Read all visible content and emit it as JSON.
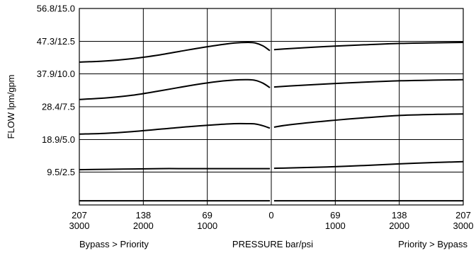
{
  "chart_data": {
    "type": "line",
    "title": "",
    "xlabel": "PRESSURE bar/psi",
    "ylabel": "FLOW lpm/gpm",
    "x_left_label": "Bypass > Priority",
    "x_right_label": "Priority > Bypass",
    "x_ticks": [
      {
        "value": -207,
        "bar": "207",
        "psi": "3000"
      },
      {
        "value": -138,
        "bar": "138",
        "psi": "2000"
      },
      {
        "value": -69,
        "bar": "69",
        "psi": "1000"
      },
      {
        "value": 0,
        "bar": "0",
        "psi": ""
      },
      {
        "value": 69,
        "bar": "69",
        "psi": "1000"
      },
      {
        "value": 138,
        "bar": "138",
        "psi": "2000"
      },
      {
        "value": 207,
        "bar": "207",
        "psi": "3000"
      }
    ],
    "y_ticks": [
      {
        "value": 9.5,
        "label": "9.5/2.5"
      },
      {
        "value": 18.9,
        "label": "18.9/5.0"
      },
      {
        "value": 28.4,
        "label": "28.4/7.5"
      },
      {
        "value": 37.9,
        "label": "37.9/10.0"
      },
      {
        "value": 47.3,
        "label": "47.3/12.5"
      },
      {
        "value": 56.8,
        "label": "56.8/15.0"
      }
    ],
    "xlim": [
      -207,
      207
    ],
    "ylim": [
      0,
      56.8
    ],
    "grid": true,
    "series": [
      {
        "x": [
          -207,
          -180,
          -150,
          -120,
          -90,
          -60,
          -40,
          -25,
          -17,
          -9,
          -1.5,
          3,
          20,
          60,
          100,
          140,
          180,
          207
        ],
        "y": [
          1.2,
          1.2,
          1.2,
          1.2,
          1.2,
          1.2,
          1.2,
          1.2,
          1.2,
          1.2,
          1.2,
          1.2,
          1.2,
          1.2,
          1.2,
          1.2,
          1.2,
          1.2
        ]
      },
      {
        "x": [
          -207,
          -180,
          -150,
          -120,
          -90,
          -60,
          -40,
          -25,
          -17,
          -9,
          -1.5,
          3,
          20,
          60,
          100,
          140,
          180,
          207
        ],
        "y": [
          10.2,
          10.3,
          10.4,
          10.5,
          10.5,
          10.5,
          10.5,
          10.5,
          10.5,
          10.5,
          10.5,
          10.6,
          10.7,
          11.0,
          11.4,
          11.9,
          12.3,
          12.5
        ]
      },
      {
        "x": [
          -207,
          -180,
          -150,
          -120,
          -90,
          -60,
          -40,
          -25,
          -17,
          -9,
          -1.5,
          3,
          20,
          60,
          100,
          140,
          180,
          207
        ],
        "y": [
          20.5,
          20.7,
          21.2,
          21.9,
          22.6,
          23.2,
          23.5,
          23.5,
          23.4,
          22.9,
          22.2,
          22.5,
          23.2,
          24.3,
          25.2,
          25.9,
          26.2,
          26.3
        ]
      },
      {
        "x": [
          -207,
          -180,
          -150,
          -120,
          -90,
          -60,
          -40,
          -25,
          -17,
          -9,
          -1.5,
          3,
          20,
          60,
          100,
          140,
          180,
          207
        ],
        "y": [
          30.5,
          30.9,
          31.7,
          33.0,
          34.4,
          35.6,
          36.1,
          36.2,
          36.0,
          35.2,
          33.9,
          34.1,
          34.4,
          35.0,
          35.5,
          35.9,
          36.1,
          36.2
        ]
      },
      {
        "x": [
          -207,
          -180,
          -150,
          -120,
          -90,
          -60,
          -40,
          -25,
          -17,
          -9,
          -1.5,
          3,
          20,
          60,
          100,
          140,
          180,
          207
        ],
        "y": [
          41.3,
          41.6,
          42.3,
          43.4,
          44.8,
          46.1,
          46.8,
          47.0,
          46.8,
          46.0,
          44.6,
          44.9,
          45.2,
          45.8,
          46.3,
          46.7,
          46.9,
          47.0
        ]
      }
    ]
  }
}
